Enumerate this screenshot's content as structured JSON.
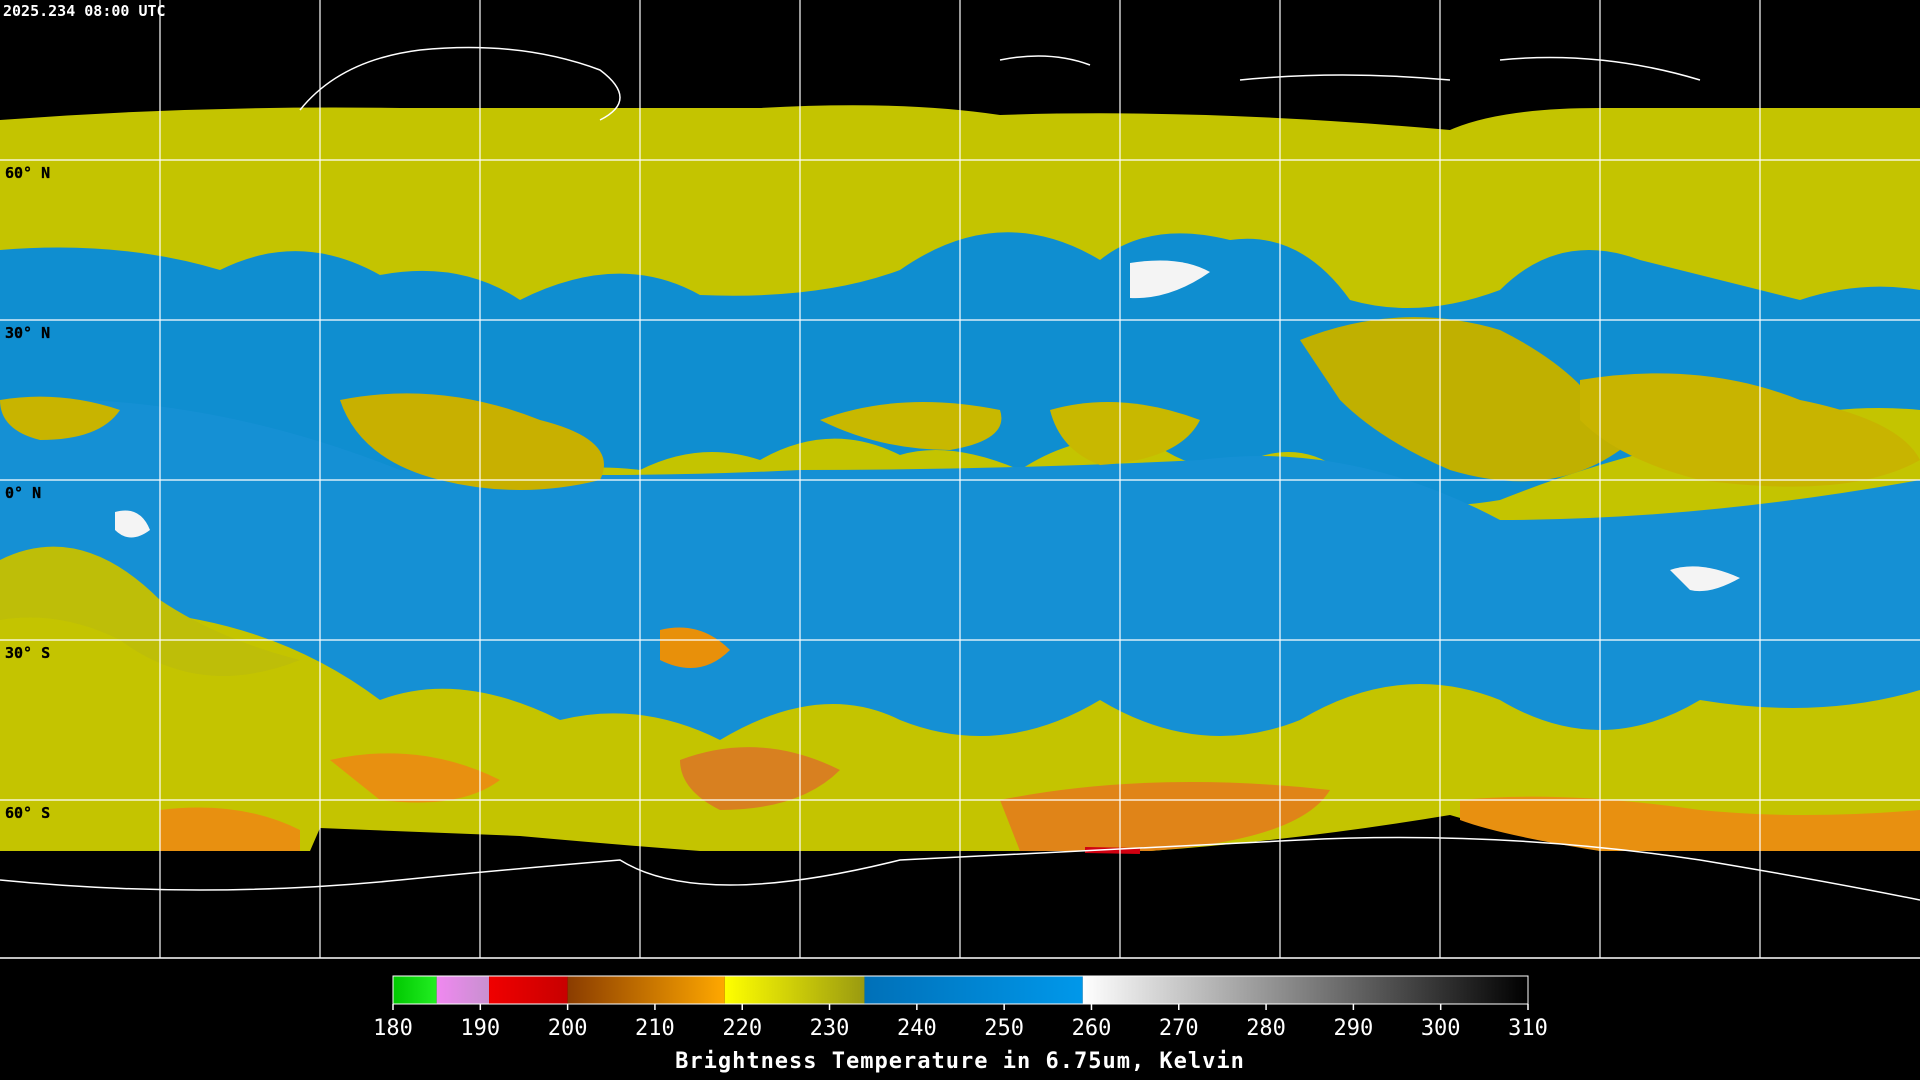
{
  "header": {
    "timestamp": "2025.234 08:00 UTC"
  },
  "map": {
    "latitude_labels": [
      "60° N",
      "30° N",
      "0° N",
      "30° S",
      "60° S"
    ]
  },
  "colorbar": {
    "title": "Brightness Temperature in 6.75um, Kelvin",
    "range": [
      180,
      310
    ],
    "ticks": [
      180,
      190,
      200,
      210,
      220,
      230,
      240,
      250,
      260,
      270,
      280,
      290,
      300,
      310
    ],
    "segments": [
      {
        "from": 180,
        "to": 185,
        "colors": [
          "#00c800",
          "#22ee22"
        ]
      },
      {
        "from": 185,
        "to": 191,
        "colors": [
          "#f088f0",
          "#c890d0"
        ]
      },
      {
        "from": 191,
        "to": 200,
        "colors": [
          "#f00000",
          "#c80000"
        ]
      },
      {
        "from": 200,
        "to": 218,
        "colors": [
          "#8a3c00",
          "#ffa800"
        ]
      },
      {
        "from": 218,
        "to": 234,
        "colors": [
          "#ffff00",
          "#9a9a10"
        ]
      },
      {
        "from": 234,
        "to": 259,
        "colors": [
          "#0070b8",
          "#0098ea"
        ]
      },
      {
        "from": 259,
        "to": 310,
        "colors": [
          "#ffffff",
          "#000000"
        ]
      }
    ]
  }
}
